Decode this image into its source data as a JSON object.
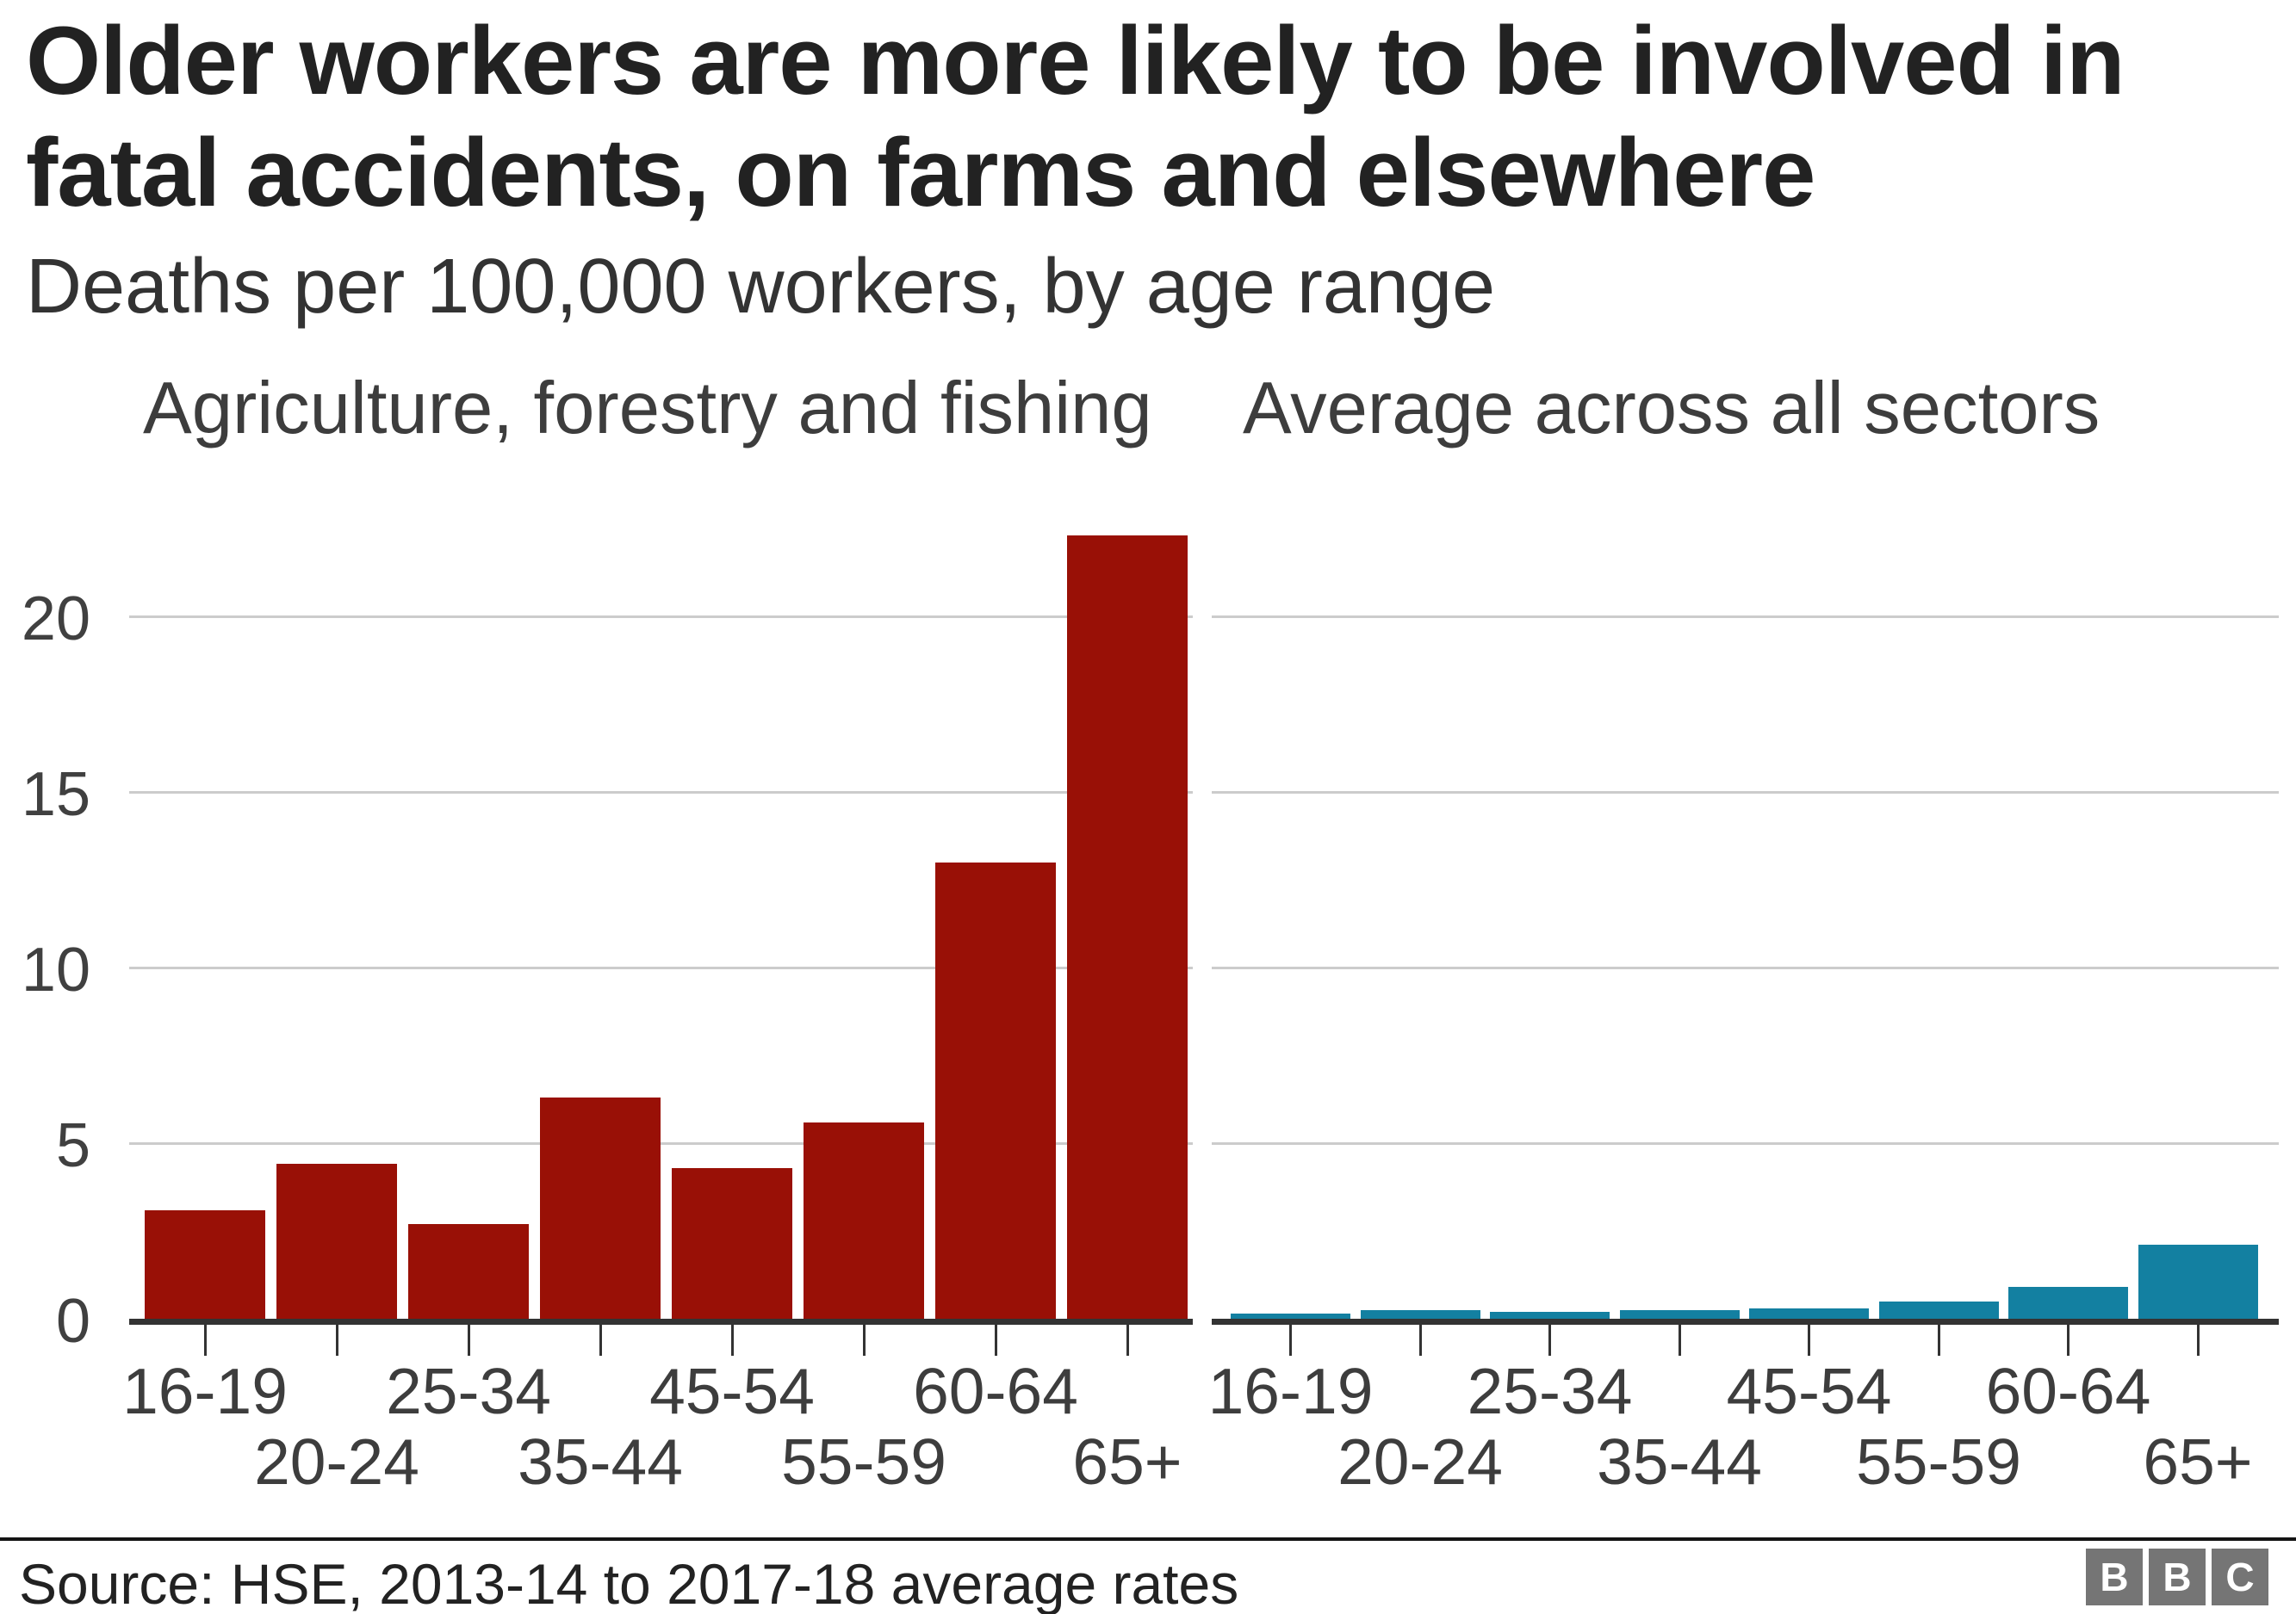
{
  "header": {
    "title": "Older workers are more likely to be involved in fatal accidents, on farms and elsewhere",
    "subtitle": "Deaths per 100,000 workers, by age range"
  },
  "chart_data": {
    "type": "bar",
    "categories": [
      "16-19",
      "20-24",
      "25-34",
      "35-44",
      "45-54",
      "55-59",
      "60-64",
      "65+"
    ],
    "y_ticks": [
      0,
      5,
      10,
      15,
      20
    ],
    "ylim": [
      0,
      22.5
    ],
    "grid": true,
    "legend_position": "top",
    "xlabel": "",
    "ylabel": "Deaths per 100,000 workers",
    "panels": [
      {
        "label": "Agriculture, forestry and fishing",
        "color": "#991006",
        "values": [
          3.1,
          4.4,
          2.7,
          6.3,
          4.3,
          5.6,
          13.0,
          22.3
        ]
      },
      {
        "label": "Average across all sectors",
        "color": "#1380a1",
        "values": [
          0.15,
          0.25,
          0.2,
          0.25,
          0.3,
          0.5,
          0.9,
          2.1
        ]
      }
    ]
  },
  "footer": {
    "source": "Source: HSE, 2013-14 to 2017-18 average rates",
    "logo_letters": [
      "B",
      "B",
      "C"
    ]
  },
  "colors": {
    "agriculture_bar": "#991006",
    "all_sectors_bar": "#1380a1",
    "gridline": "#cccccc",
    "axis": "#333333",
    "text_dark": "#222222",
    "logo_gray": "#757575"
  }
}
